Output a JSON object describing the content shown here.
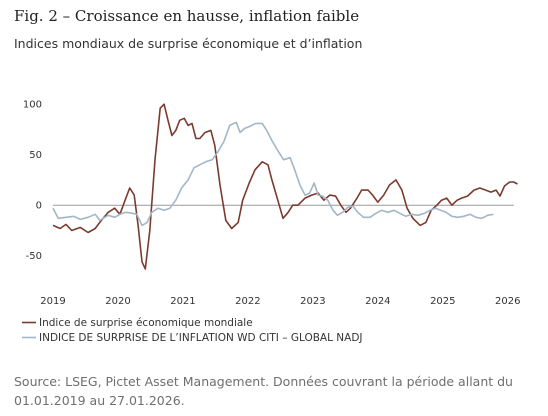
{
  "chart_data": {
    "type": "line",
    "title": "Fig. 2 – Croissance en hausse, inflation faible",
    "subtitle": "Indices mondiaux de surprise économique et d’inflation",
    "xlim": [
      2019,
      2026.25
    ],
    "xticks": [
      2019,
      2020,
      2021,
      2022,
      2023,
      2024,
      2025,
      2026
    ],
    "ylim": [
      -75,
      115
    ],
    "yticks": [
      -50,
      0,
      50,
      100
    ],
    "zero_line": true,
    "series": [
      {
        "name": "Indice de surprise économique mondiale",
        "color": "#7a3b2e",
        "x": [
          2019.0,
          2019.11,
          2019.2,
          2019.29,
          2019.42,
          2019.54,
          2019.65,
          2019.72,
          2019.85,
          2019.95,
          2020.03,
          2020.11,
          2020.18,
          2020.25,
          2020.31,
          2020.37,
          2020.42,
          2020.49,
          2020.57,
          2020.65,
          2020.71,
          2020.77,
          2020.83,
          2020.89,
          2020.95,
          2021.02,
          2021.08,
          2021.14,
          2021.2,
          2021.26,
          2021.34,
          2021.43,
          2021.49,
          2021.57,
          2021.66,
          2021.75,
          2021.85,
          2021.92,
          2022.02,
          2022.11,
          2022.22,
          2022.31,
          2022.37,
          2022.46,
          2022.54,
          2022.62,
          2022.69,
          2022.77,
          2022.88,
          2022.98,
          2023.08,
          2023.17,
          2023.26,
          2023.35,
          2023.43,
          2023.51,
          2023.58,
          2023.68,
          2023.75,
          2023.85,
          2023.92,
          2024.0,
          2024.09,
          2024.18,
          2024.28,
          2024.37,
          2024.45,
          2024.54,
          2024.65,
          2024.74,
          2024.82,
          2024.91,
          2024.98,
          2025.06,
          2025.14,
          2025.22,
          2025.29,
          2025.38,
          2025.48,
          2025.57,
          2025.66,
          2025.74,
          2025.82,
          2025.88,
          2025.95,
          2026.03,
          2026.09,
          2026.15
        ],
        "values": [
          -20,
          -23,
          -19,
          -25,
          -22,
          -27,
          -23,
          -17,
          -7,
          -3,
          -9,
          5,
          17,
          10,
          -20,
          -56,
          -63,
          -25,
          45,
          96,
          100,
          84,
          69,
          74,
          84,
          86,
          79,
          81,
          66,
          66,
          72,
          74,
          59,
          20,
          -15,
          -23,
          -17,
          5,
          22,
          35,
          43,
          40,
          25,
          5,
          -13,
          -7,
          0,
          0,
          7,
          10,
          12,
          5,
          10,
          9,
          0,
          -7,
          -3,
          7,
          15,
          15,
          10,
          3,
          10,
          20,
          25,
          15,
          -3,
          -13,
          -20,
          -17,
          -5,
          0,
          5,
          7,
          0,
          5,
          7,
          9,
          15,
          17,
          15,
          13,
          15,
          9,
          19,
          23,
          23,
          21
        ]
      },
      {
        "name": "INDICE DE SURPRISE DE L’INFLATION WD CITI – GLOBAL NADJ",
        "color": "#a3b6ca",
        "x": [
          2019.0,
          2019.08,
          2019.2,
          2019.32,
          2019.42,
          2019.54,
          2019.65,
          2019.72,
          2019.85,
          2019.95,
          2020.03,
          2020.12,
          2020.22,
          2020.29,
          2020.37,
          2020.45,
          2020.52,
          2020.62,
          2020.71,
          2020.8,
          2020.89,
          2020.98,
          2021.08,
          2021.17,
          2021.26,
          2021.35,
          2021.45,
          2021.54,
          2021.63,
          2021.72,
          2021.82,
          2021.88,
          2021.95,
          2022.03,
          2022.12,
          2022.22,
          2022.29,
          2022.37,
          2022.46,
          2022.55,
          2022.65,
          2022.72,
          2022.8,
          2022.88,
          2022.95,
          2023.02,
          2023.08,
          2023.15,
          2023.23,
          2023.31,
          2023.38,
          2023.46,
          2023.54,
          2023.62,
          2023.69,
          2023.78,
          2023.88,
          2023.97,
          2024.06,
          2024.15,
          2024.25,
          2024.34,
          2024.43,
          2024.52,
          2024.62,
          2024.72,
          2024.8,
          2024.89,
          2024.97,
          2025.05,
          2025.14,
          2025.23,
          2025.32,
          2025.42,
          2025.51,
          2025.6,
          2025.69,
          2025.78
        ],
        "values": [
          -3,
          -13,
          -12,
          -11,
          -14,
          -12,
          -9,
          -15,
          -10,
          -12,
          -9,
          -7,
          -8,
          -9,
          -20,
          -17,
          -7,
          -3,
          -5,
          -3,
          5,
          17,
          25,
          37,
          40,
          43,
          45,
          53,
          63,
          79,
          82,
          72,
          76,
          78,
          81,
          81,
          74,
          64,
          54,
          45,
          47,
          35,
          20,
          10,
          12,
          22,
          10,
          9,
          5,
          -5,
          -10,
          -7,
          -2,
          -1,
          -7,
          -12,
          -12,
          -8,
          -5,
          -7,
          -5,
          -8,
          -11,
          -9,
          -10,
          -8,
          -5,
          -3,
          -5,
          -7,
          -11,
          -12,
          -11,
          -9,
          -12,
          -13,
          -10,
          -9
        ]
      }
    ],
    "source": [
      "Source: LSEG, Pictet Asset Management. Données couvrant la période allant du",
      "01.01.2019 au 27.01.2026."
    ]
  }
}
